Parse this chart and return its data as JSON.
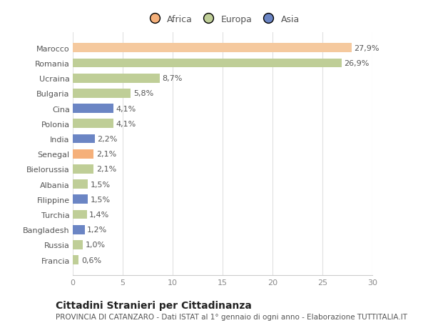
{
  "categories": [
    "Francia",
    "Russia",
    "Bangladesh",
    "Turchia",
    "Filippine",
    "Albania",
    "Bielorussia",
    "Senegal",
    "India",
    "Polonia",
    "Cina",
    "Bulgaria",
    "Ucraina",
    "Romania",
    "Marocco"
  ],
  "values": [
    0.6,
    1.0,
    1.2,
    1.4,
    1.5,
    1.5,
    2.1,
    2.1,
    2.2,
    4.1,
    4.1,
    5.8,
    8.7,
    26.9,
    27.9
  ],
  "labels": [
    "0,6%",
    "1,0%",
    "1,2%",
    "1,4%",
    "1,5%",
    "1,5%",
    "2,1%",
    "2,1%",
    "2,2%",
    "4,1%",
    "4,1%",
    "5,8%",
    "8,7%",
    "26,9%",
    "27,9%"
  ],
  "colors": [
    "#bfce97",
    "#bfce97",
    "#6b85c4",
    "#bfce97",
    "#6b85c4",
    "#bfce97",
    "#bfce97",
    "#f5b07a",
    "#6b85c4",
    "#bfce97",
    "#6b85c4",
    "#bfce97",
    "#bfce97",
    "#bfce97",
    "#f5c99e"
  ],
  "legend_labels": [
    "Africa",
    "Europa",
    "Asia"
  ],
  "legend_colors": [
    "#f5b07a",
    "#bfce97",
    "#6b85c4"
  ],
  "title": "Cittadini Stranieri per Cittadinanza",
  "subtitle": "PROVINCIA DI CATANZARO - Dati ISTAT al 1° gennaio di ogni anno - Elaborazione TUTTITALIA.IT",
  "xlim": [
    0,
    30
  ],
  "xticks": [
    0,
    5,
    10,
    15,
    20,
    25,
    30
  ],
  "background_color": "#ffffff",
  "bar_height": 0.6,
  "label_fontsize": 8,
  "tick_fontsize": 8,
  "ytick_fontsize": 8,
  "title_fontsize": 10,
  "subtitle_fontsize": 7.5
}
